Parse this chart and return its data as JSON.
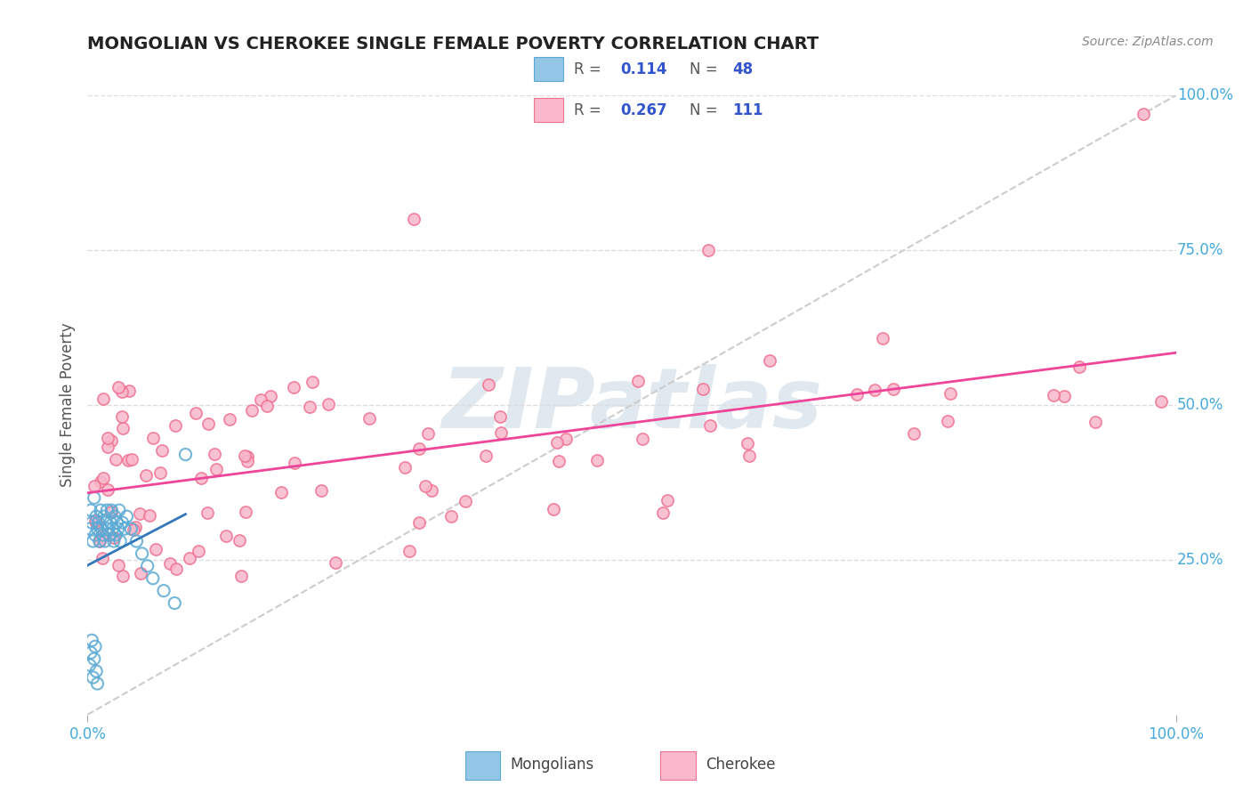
{
  "title": "MONGOLIAN VS CHEROKEE SINGLE FEMALE POVERTY CORRELATION CHART",
  "source": "Source: ZipAtlas.com",
  "ylabel": "Single Female Poverty",
  "mongolian_R": "0.114",
  "mongolian_N": "48",
  "cherokee_R": "0.267",
  "cherokee_N": "111",
  "mongolian_color": "#94c6e7",
  "mongolian_edge_color": "#5aaad4",
  "cherokee_color": "#f9b8cc",
  "cherokee_edge_color": "#f07090",
  "mongolian_line_color": "#3377bb",
  "cherokee_line_color": "#ee4499",
  "diagonal_color": "#cccccc",
  "grid_color": "#dddddd",
  "title_color": "#222222",
  "source_color": "#888888",
  "tick_color": "#44aadd",
  "legend_value_color": "#3355cc",
  "watermark_text": "ZIPatlas",
  "watermark_color": "#e0e8f0",
  "legend_label_color": "#555555"
}
